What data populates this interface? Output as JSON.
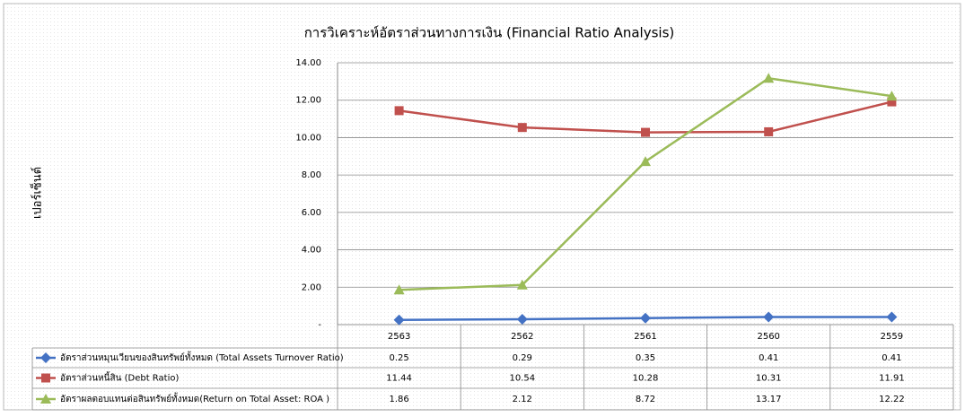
{
  "chart_data": {
    "type": "line",
    "title": "การวิเคราะห์อัตราส่วนทางการเงิน (Financial Ratio Analysis)",
    "y_label": "เปอร์เซ็นต์",
    "categories": [
      "2563",
      "2562",
      "2561",
      "2560",
      "2559"
    ],
    "series": [
      {
        "name": "อัตราส่วนหมุนเวียนของสินทรัพย์ทั้งหมด (Total Assets Turnover Ratio)",
        "color": "#4472c4",
        "marker": "diamond",
        "values": [
          0.25,
          0.29,
          0.35,
          0.41,
          0.41
        ]
      },
      {
        "name": "อัตราส่วนหนี้สิน (Debt Ratio)",
        "color": "#c0504d",
        "marker": "square",
        "values": [
          11.44,
          10.54,
          10.28,
          10.31,
          11.91
        ]
      },
      {
        "name": "อัตราผลตอบแทนต่อสินทรัพย์ทั้งหมด(Return  on Total Asset: ROA )",
        "color": "#9bbb59",
        "marker": "triangle",
        "values": [
          1.86,
          2.12,
          8.72,
          13.17,
          12.22
        ]
      }
    ],
    "ylim": [
      0,
      14
    ],
    "yticks": [
      {
        "value": 0,
        "label": "-"
      },
      {
        "value": 2,
        "label": "2.00"
      },
      {
        "value": 4,
        "label": "4.00"
      },
      {
        "value": 6,
        "label": "6.00"
      },
      {
        "value": 8,
        "label": "8.00"
      },
      {
        "value": 10,
        "label": "10.00"
      },
      {
        "value": 12,
        "label": "12.00"
      },
      {
        "value": 14,
        "label": "14.00"
      }
    ],
    "grid": true,
    "data_table": true
  }
}
